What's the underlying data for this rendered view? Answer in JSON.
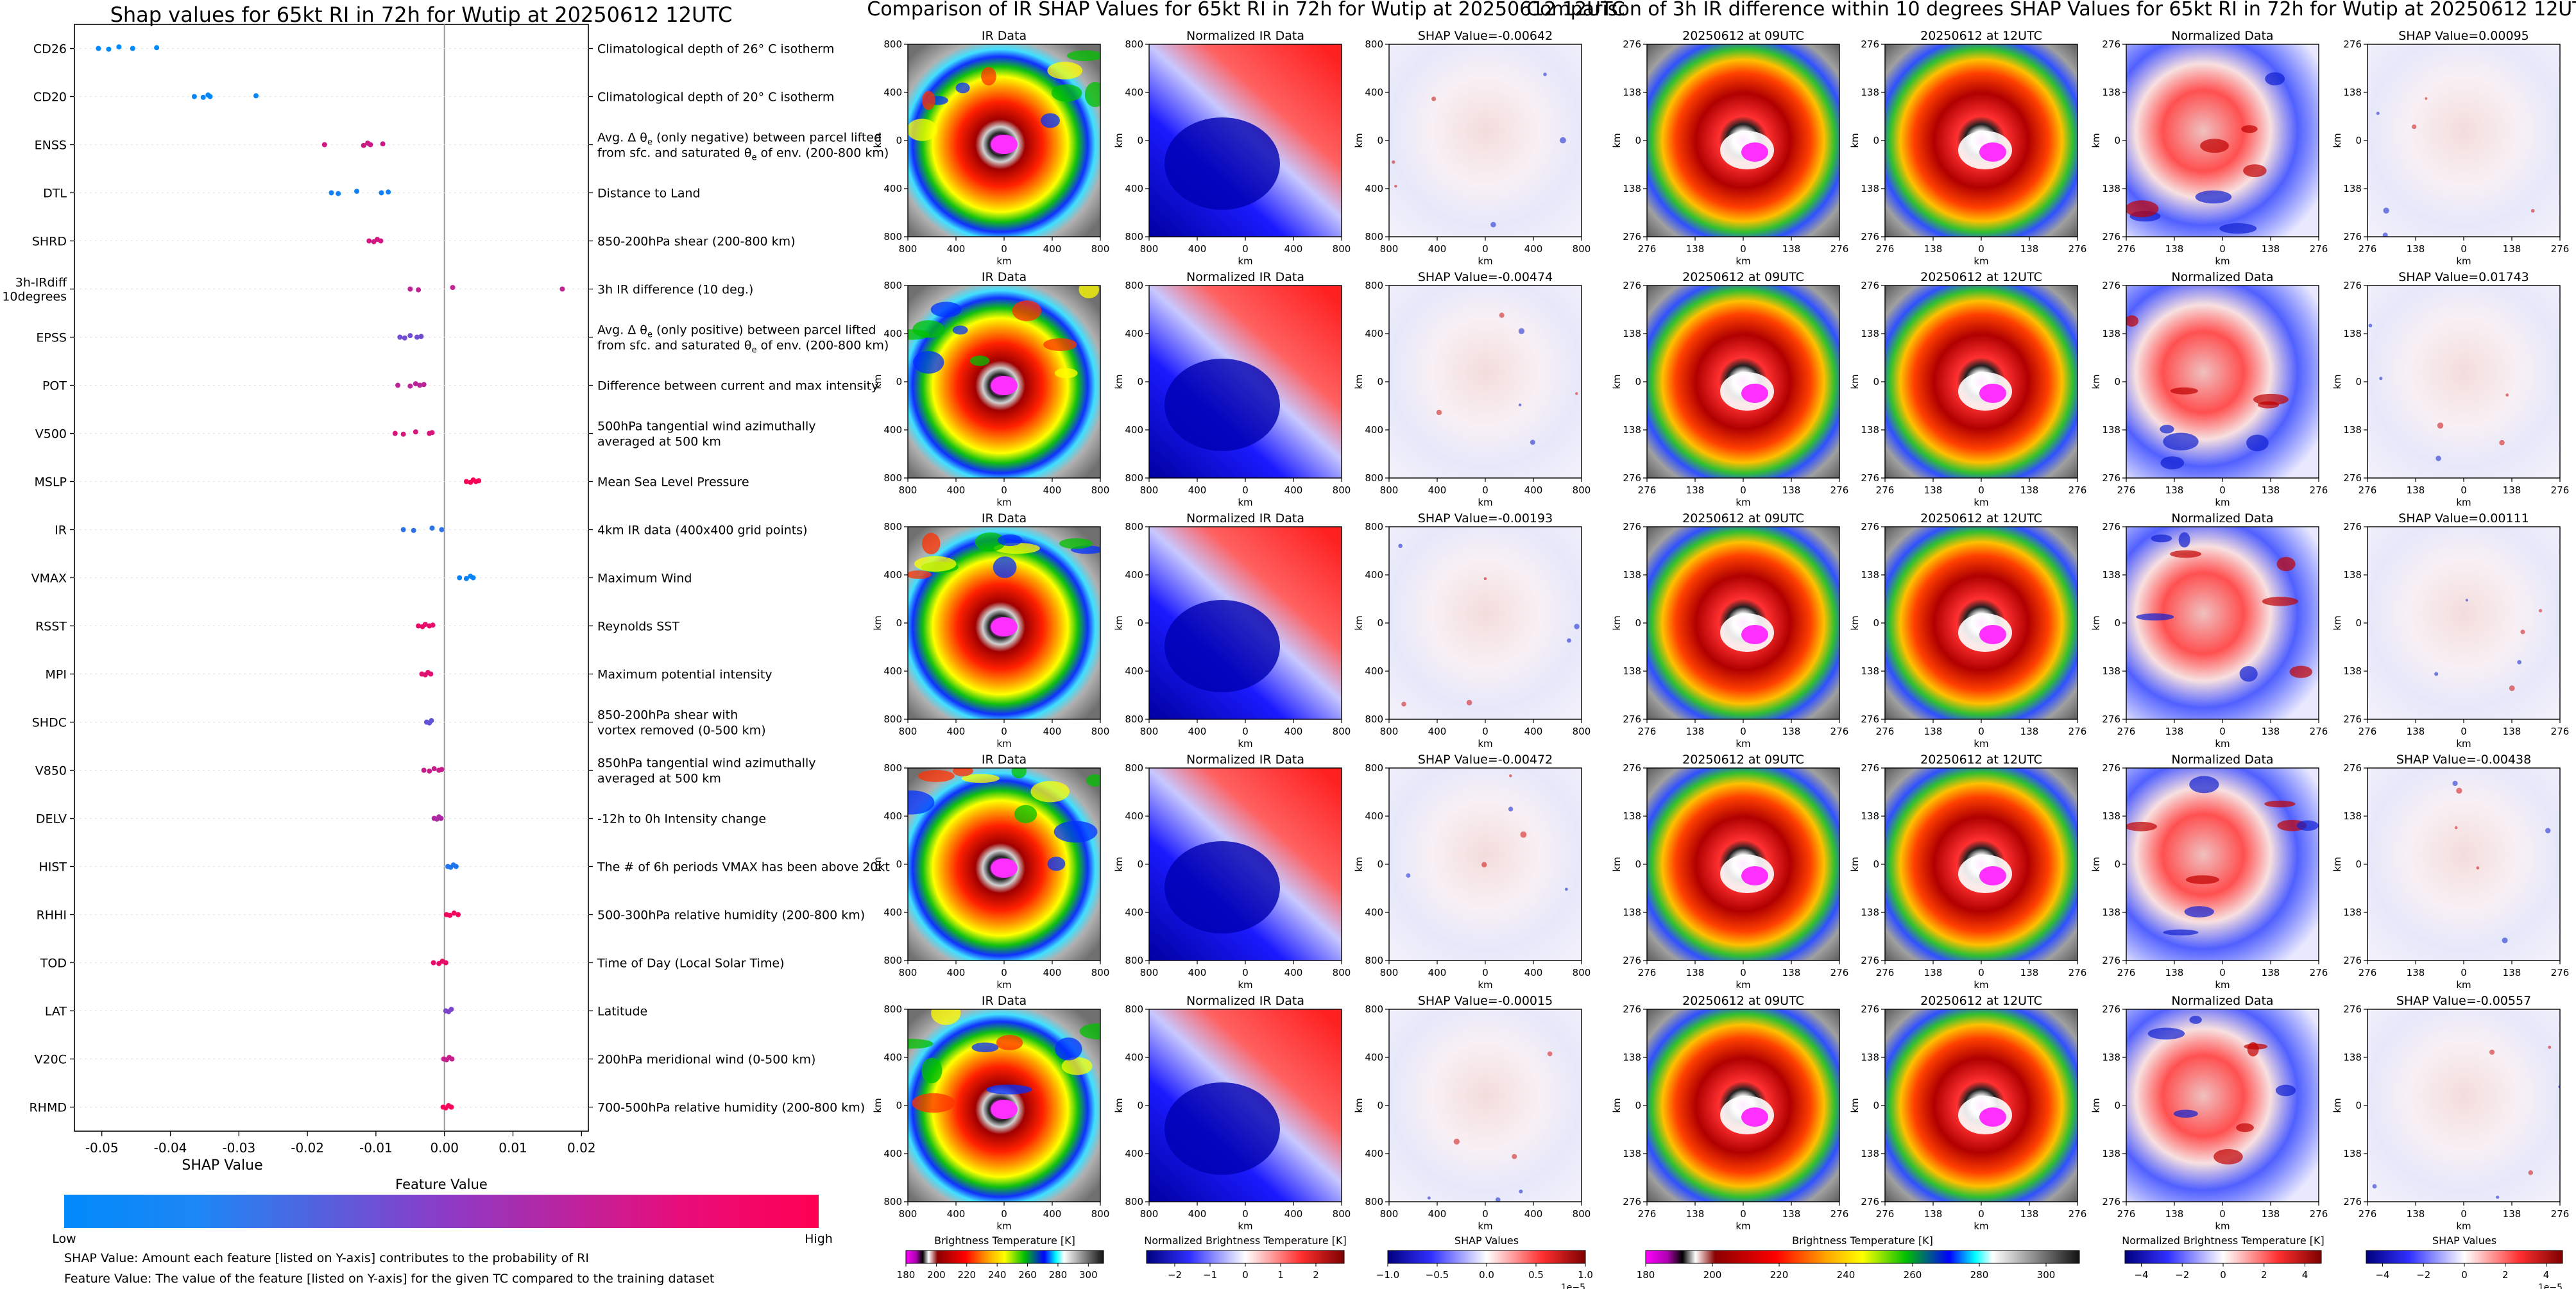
{
  "colors": {
    "low": "#008afb",
    "mid": "#8b3cc7",
    "high": "#ff0051",
    "axis": "#000000",
    "zero_line": "#9a9a9a"
  },
  "chart_data": [
    {
      "type": "scatter",
      "name_key": "shap-summary",
      "title": "Shap values for 65kt RI in 72h for Wutip at 20250612 12UTC",
      "xlabel": "SHAP Value",
      "xlim": [
        -0.054,
        0.021
      ],
      "xticks": [
        "-0.05",
        "-0.04",
        "-0.03",
        "-0.02",
        "-0.01",
        "0.00",
        "0.01",
        "0.02"
      ],
      "xtick_values": [
        -0.05,
        -0.04,
        -0.03,
        -0.02,
        -0.01,
        0.0,
        0.01,
        0.02
      ],
      "features": [
        {
          "name": "CD26",
          "desc": "Climatological depth of 26° C isotherm",
          "points": [
            -0.0505,
            -0.049,
            -0.0475,
            -0.0455,
            -0.042
          ],
          "fv": 0.0
        },
        {
          "name": "CD20",
          "desc": "Climatological depth of 20° C isotherm",
          "points": [
            -0.0365,
            -0.0352,
            -0.0345,
            -0.0342,
            -0.0275
          ],
          "fv": 0.02
        },
        {
          "name": "ENSS",
          "desc": "Avg. Δ θe (only negative) between parcel lifted\nfrom sfc. and saturated θe of env. (200-800 km)",
          "points": [
            -0.0175,
            -0.0118,
            -0.0112,
            -0.0108,
            -0.009
          ],
          "fv": 0.78
        },
        {
          "name": "DTL",
          "desc": "Distance to Land",
          "points": [
            -0.0165,
            -0.0155,
            -0.0128,
            -0.0092,
            -0.0082
          ],
          "fv": 0.06
        },
        {
          "name": "SHRD",
          "desc": "850-200hPa shear (200-800 km)",
          "points": [
            -0.011,
            -0.0103,
            -0.0098,
            -0.0093
          ],
          "fv": 0.8
        },
        {
          "name": "3h-IRdiff\n10degrees",
          "desc": "3h IR difference (10 deg.)",
          "points": [
            -0.005,
            -0.0038,
            0.0012,
            0.0172
          ],
          "fv": 0.72
        },
        {
          "name": "EPSS",
          "desc": "Avg. Δ θe (only positive) between parcel lifted\nfrom sfc. and saturated θe of env. (200-800 km)",
          "points": [
            -0.0065,
            -0.0058,
            -0.005,
            -0.004,
            -0.0034
          ],
          "fv": 0.4
        },
        {
          "name": "POT",
          "desc": "Difference between current and max intensity",
          "points": [
            -0.0068,
            -0.005,
            -0.0042,
            -0.0036,
            -0.003
          ],
          "fv": 0.7
        },
        {
          "name": "V500",
          "desc": "500hPa tangential wind azimuthally\naveraged at 500 km",
          "points": [
            -0.0072,
            -0.006,
            -0.0042,
            -0.0022,
            -0.0018
          ],
          "fv": 0.82
        },
        {
          "name": "MSLP",
          "desc": "Mean Sea Level Pressure",
          "points": [
            0.0032,
            0.0038,
            0.0042,
            0.0046,
            0.005
          ],
          "fv": 0.98
        },
        {
          "name": "IR",
          "desc": "4km IR data (400x400 grid points)",
          "points": [
            -0.006,
            -0.0045,
            -0.0018,
            -0.0004
          ],
          "fv": 0.15
        },
        {
          "name": "VMAX",
          "desc": "Maximum Wind",
          "points": [
            0.0022,
            0.0032,
            0.0038,
            0.0042
          ],
          "fv": 0.04
        },
        {
          "name": "RSST",
          "desc": "Reynolds SST",
          "points": [
            -0.0038,
            -0.0032,
            -0.0028,
            -0.0022,
            -0.0017
          ],
          "fv": 0.9
        },
        {
          "name": "MPI",
          "desc": "Maximum potential intensity",
          "points": [
            -0.0033,
            -0.0028,
            -0.0024,
            -0.002
          ],
          "fv": 0.86
        },
        {
          "name": "SHDC",
          "desc": "850-200hPa shear with\nvortex removed (0-500 km)",
          "points": [
            -0.0026,
            -0.0022,
            -0.0019
          ],
          "fv": 0.35
        },
        {
          "name": "V850",
          "desc": "850hPa tangential wind azimuthally\naveraged at 500 km",
          "points": [
            -0.003,
            -0.0022,
            -0.0015,
            -0.0008,
            -0.0004
          ],
          "fv": 0.76
        },
        {
          "name": "DELV",
          "desc": "-12h to 0h Intensity change",
          "points": [
            -0.0015,
            -0.0011,
            -0.0008,
            -0.0005
          ],
          "fv": 0.65
        },
        {
          "name": "HIST",
          "desc": "The # of 6h periods VMAX has been above 20kt",
          "points": [
            0.0005,
            0.0009,
            0.0013,
            0.0017
          ],
          "fv": 0.12
        },
        {
          "name": "RHHI",
          "desc": "500-300hPa relative humidity (200-800 km)",
          "points": [
            0.0003,
            0.0008,
            0.0014,
            0.002
          ],
          "fv": 0.95
        },
        {
          "name": "TOD",
          "desc": "Time of Day (Local Solar Time)",
          "points": [
            -0.0016,
            -0.0008,
            -0.0003,
            0.0002
          ],
          "fv": 0.9
        },
        {
          "name": "LAT",
          "desc": "Latitude",
          "points": [
            0.0002,
            0.0006,
            0.001
          ],
          "fv": 0.45
        },
        {
          "name": "V20C",
          "desc": "200hPa meridional wind (0-500 km)",
          "points": [
            -0.0001,
            0.0003,
            0.0007,
            0.0011
          ],
          "fv": 0.75
        },
        {
          "name": "RHMD",
          "desc": "700-500hPa relative humidity (200-800 km)",
          "points": [
            -0.0002,
            0.0002,
            0.0006,
            0.001
          ],
          "fv": 0.97
        }
      ],
      "colorbar": {
        "title": "Feature Value",
        "low_label": "Low",
        "high_label": "High"
      },
      "notes": [
        "SHAP Value: Amount each feature [listed on Y-axis] contributes to the probability of RI",
        "Feature Value: The value of the feature [listed on Y-axis] for the given TC compared to the training dataset"
      ]
    },
    {
      "type": "heatmap",
      "name_key": "ir-shap-grid",
      "title": "Comparison of IR SHAP Values for 65kt RI in 72h for Wutip at 20250612 12UTC",
      "column_titles": [
        "IR Data",
        "Normalized IR Data"
      ],
      "shap_titles": [
        "SHAP Value=-0.00642",
        "SHAP Value=-0.00474",
        "SHAP Value=-0.00193",
        "SHAP Value=-0.00472",
        "SHAP Value=-0.00015"
      ],
      "ticks": [
        "800",
        "400",
        "0",
        "400",
        "800"
      ],
      "axis_label": "km",
      "colorbars": [
        {
          "title": "Brightness Temperature [K]",
          "ticks": [
            "180",
            "200",
            "220",
            "240",
            "260",
            "280",
            "300"
          ],
          "range": [
            180,
            310
          ],
          "kind": "ir"
        },
        {
          "title": "Normalized Brightness Temperature [K]",
          "ticks": [
            "−2",
            "−1",
            "0",
            "1",
            "2"
          ],
          "range": [
            -2.8,
            2.8
          ],
          "kind": "bwr"
        },
        {
          "title": "SHAP Values",
          "ticks": [
            "−1.0",
            "−0.5",
            "0.0",
            "0.5",
            "1.0"
          ],
          "range": [
            -1.0,
            1.0
          ],
          "kind": "bwr",
          "exponent": "1e−5"
        }
      ]
    },
    {
      "type": "heatmap",
      "name_key": "irdiff-shap-grid",
      "title": "Comparison of 3h IR difference within 10 degrees SHAP Values for 65kt RI in 72h for Wutip at 20250612 12UTC",
      "column_titles": [
        "20250612 at 09UTC",
        "20250612 at 12UTC",
        "Normalized Data"
      ],
      "shap_titles": [
        "SHAP Value=0.00095",
        "SHAP Value=0.01743",
        "SHAP Value=0.00111",
        "SHAP Value=-0.00438",
        "SHAP Value=-0.00557"
      ],
      "ticks": [
        "276",
        "138",
        "0",
        "138",
        "276"
      ],
      "axis_label": "km",
      "colorbars": [
        {
          "title": "Brightness Temperature [K]",
          "ticks": [
            "180",
            "200",
            "220",
            "240",
            "260",
            "280",
            "300"
          ],
          "range": [
            180,
            310
          ],
          "kind": "ir"
        },
        {
          "title": "Normalized Brightness Temperature [K]",
          "ticks": [
            "−4",
            "−2",
            "0",
            "2",
            "4"
          ],
          "range": [
            -4.8,
            4.8
          ],
          "kind": "bwr"
        },
        {
          "title": "SHAP Values",
          "ticks": [
            "−4",
            "−2",
            "0",
            "2",
            "4"
          ],
          "range": [
            -4.8,
            4.8
          ],
          "kind": "bwr",
          "exponent": "1e−5"
        }
      ]
    }
  ]
}
